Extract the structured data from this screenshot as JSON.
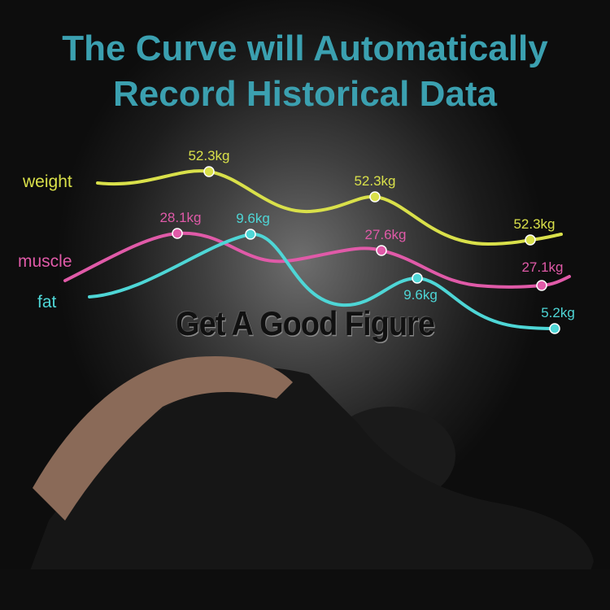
{
  "title": {
    "line1": "The Curve will Automatically",
    "line2": "Record Historical Data"
  },
  "slogan": "Get A Good Figure",
  "colors": {
    "title": "#3ba0b0",
    "weight": "#d9e04a",
    "muscle": "#e05aa8",
    "fat": "#4ed6d6"
  },
  "chart_data": {
    "type": "line",
    "series": [
      {
        "name": "weight",
        "color": "#d9e04a",
        "labels": [
          "52.3kg",
          "52.3kg",
          "52.3kg"
        ]
      },
      {
        "name": "muscle",
        "color": "#e05aa8",
        "labels": [
          "28.1kg",
          "27.6kg",
          "27.1kg"
        ]
      },
      {
        "name": "fat",
        "color": "#4ed6d6",
        "labels": [
          "9.6kg",
          "9.6kg",
          "5.2kg"
        ]
      }
    ]
  }
}
